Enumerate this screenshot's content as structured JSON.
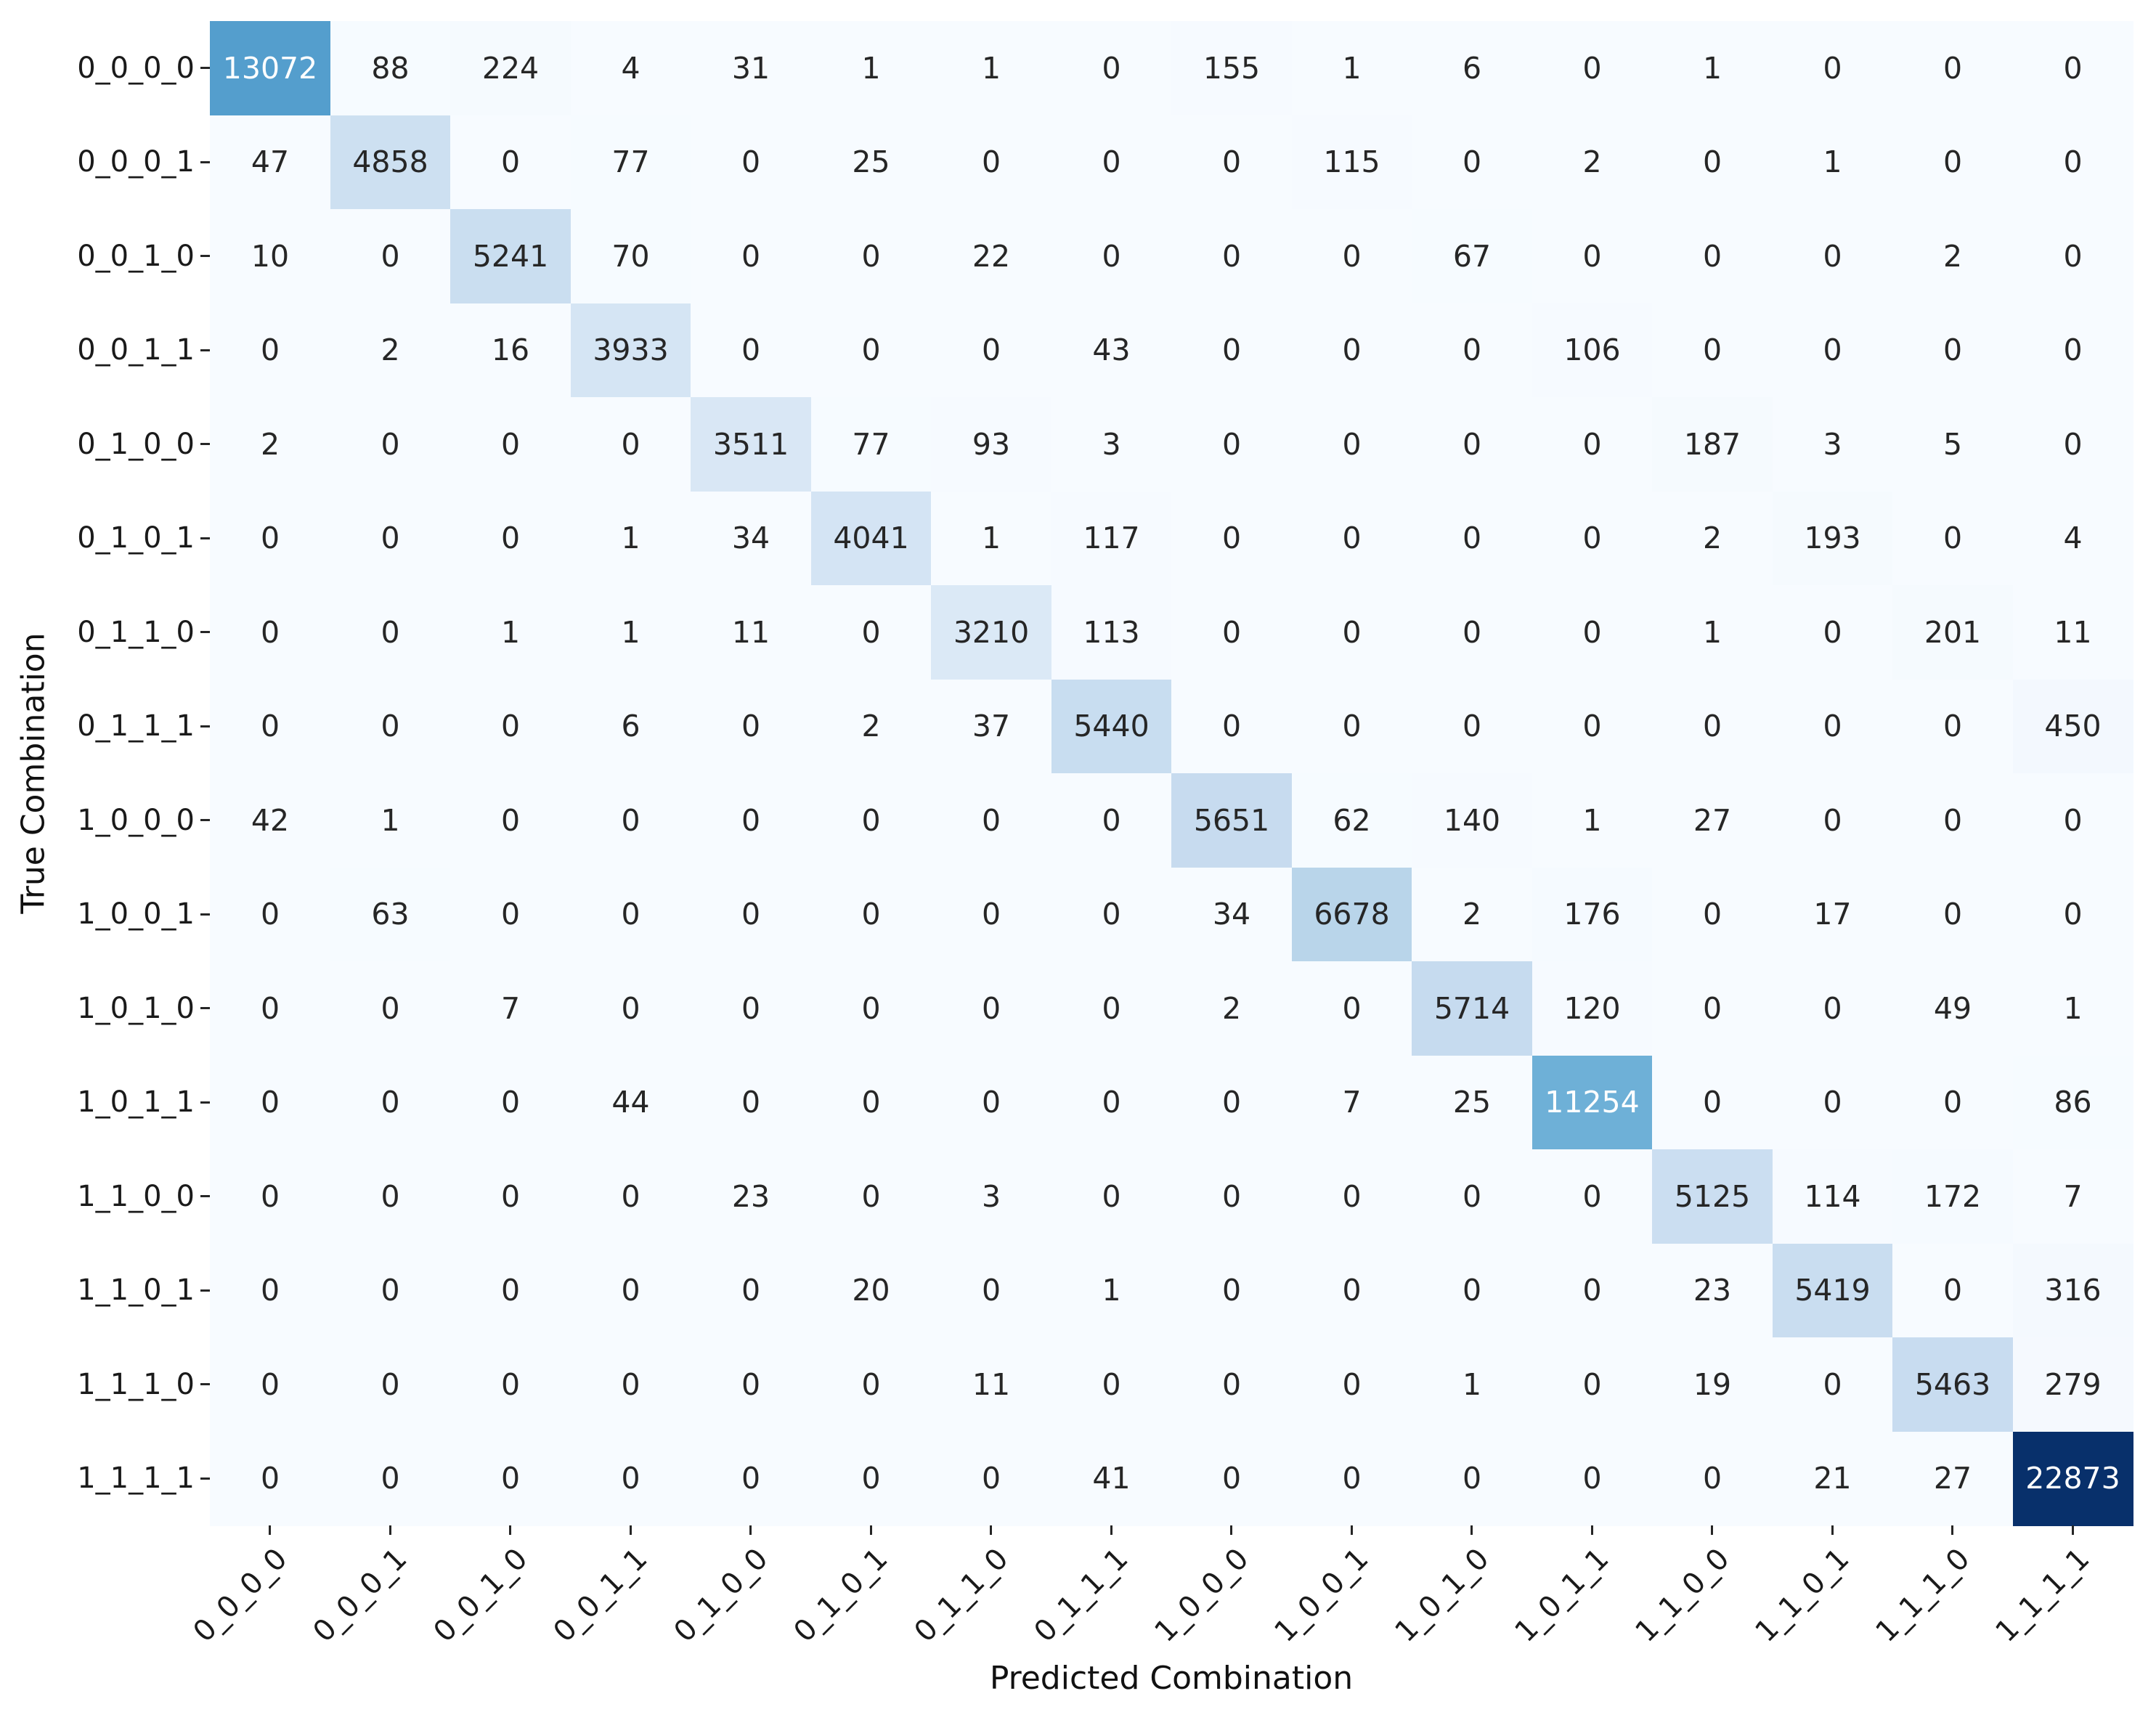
{
  "figure": {
    "background": "#ffffff"
  },
  "chart_data": {
    "type": "heatmap",
    "title": "",
    "xlabel": "Predicted Combination",
    "ylabel": "True Combination",
    "x_tick_labels": [
      "0_0_0_0",
      "0_0_0_1",
      "0_0_1_0",
      "0_0_1_1",
      "0_1_0_0",
      "0_1_0_1",
      "0_1_1_0",
      "0_1_1_1",
      "1_0_0_0",
      "1_0_0_1",
      "1_0_1_0",
      "1_0_1_1",
      "1_1_0_0",
      "1_1_0_1",
      "1_1_1_0",
      "1_1_1_1"
    ],
    "y_tick_labels": [
      "0_0_0_0",
      "0_0_0_1",
      "0_0_1_0",
      "0_0_1_1",
      "0_1_0_0",
      "0_1_0_1",
      "0_1_1_0",
      "0_1_1_1",
      "1_0_0_0",
      "1_0_0_1",
      "1_0_1_0",
      "1_0_1_1",
      "1_1_0_0",
      "1_1_0_1",
      "1_1_1_0",
      "1_1_1_1"
    ],
    "matrix": [
      [
        13072,
        88,
        224,
        4,
        31,
        1,
        1,
        0,
        155,
        1,
        6,
        0,
        1,
        0,
        0,
        0
      ],
      [
        47,
        4858,
        0,
        77,
        0,
        25,
        0,
        0,
        0,
        115,
        0,
        2,
        0,
        1,
        0,
        0
      ],
      [
        10,
        0,
        5241,
        70,
        0,
        0,
        22,
        0,
        0,
        0,
        67,
        0,
        0,
        0,
        2,
        0
      ],
      [
        0,
        2,
        16,
        3933,
        0,
        0,
        0,
        43,
        0,
        0,
        0,
        106,
        0,
        0,
        0,
        0
      ],
      [
        2,
        0,
        0,
        0,
        3511,
        77,
        93,
        3,
        0,
        0,
        0,
        0,
        187,
        3,
        5,
        0
      ],
      [
        0,
        0,
        0,
        1,
        34,
        4041,
        1,
        117,
        0,
        0,
        0,
        0,
        2,
        193,
        0,
        4
      ],
      [
        0,
        0,
        1,
        1,
        11,
        0,
        3210,
        113,
        0,
        0,
        0,
        0,
        1,
        0,
        201,
        11
      ],
      [
        0,
        0,
        0,
        6,
        0,
        2,
        37,
        5440,
        0,
        0,
        0,
        0,
        0,
        0,
        0,
        450
      ],
      [
        42,
        1,
        0,
        0,
        0,
        0,
        0,
        0,
        5651,
        62,
        140,
        1,
        27,
        0,
        0,
        0
      ],
      [
        0,
        63,
        0,
        0,
        0,
        0,
        0,
        0,
        34,
        6678,
        2,
        176,
        0,
        17,
        0,
        0
      ],
      [
        0,
        0,
        7,
        0,
        0,
        0,
        0,
        0,
        2,
        0,
        5714,
        120,
        0,
        0,
        49,
        1
      ],
      [
        0,
        0,
        0,
        44,
        0,
        0,
        0,
        0,
        0,
        7,
        25,
        11254,
        0,
        0,
        0,
        86
      ],
      [
        0,
        0,
        0,
        0,
        23,
        0,
        3,
        0,
        0,
        0,
        0,
        0,
        5125,
        114,
        172,
        7
      ],
      [
        0,
        0,
        0,
        0,
        0,
        20,
        0,
        1,
        0,
        0,
        0,
        0,
        23,
        5419,
        0,
        316
      ],
      [
        0,
        0,
        0,
        0,
        0,
        0,
        11,
        0,
        0,
        0,
        1,
        0,
        19,
        0,
        5463,
        279
      ],
      [
        0,
        0,
        0,
        0,
        0,
        0,
        0,
        41,
        0,
        0,
        0,
        0,
        0,
        21,
        27,
        22873
      ]
    ],
    "vmin": 0,
    "vmax": 22873,
    "colormap": "Blues",
    "colormap_stops": [
      [
        0.0,
        "#f7fbff"
      ],
      [
        0.125,
        "#deebf7"
      ],
      [
        0.25,
        "#c6dbef"
      ],
      [
        0.375,
        "#9ecae1"
      ],
      [
        0.5,
        "#6baed6"
      ],
      [
        0.625,
        "#4292c6"
      ],
      [
        0.75,
        "#2171b5"
      ],
      [
        0.875,
        "#08519c"
      ],
      [
        1.0,
        "#08306b"
      ]
    ],
    "annotation_text_dark": "#262626",
    "annotation_text_light": "#ffffff",
    "tick_color": "#262626",
    "x_tick_rotation_deg": 45,
    "grid": false,
    "legend_position": "none",
    "annotated": true
  }
}
